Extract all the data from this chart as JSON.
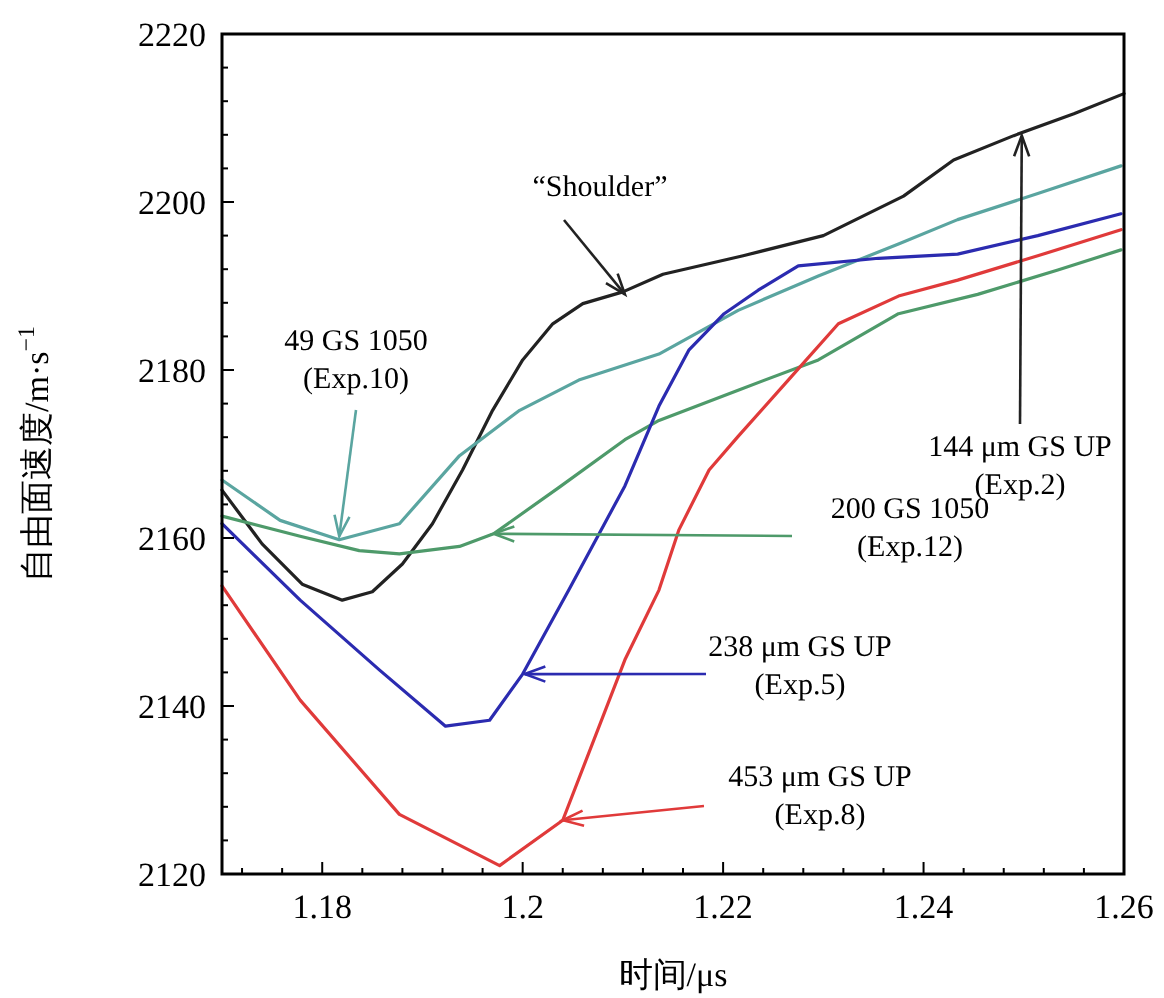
{
  "chart_data": {
    "type": "line",
    "xlabel": "时间/μs",
    "ylabel": "自由面速度/m·s$^{−1}$",
    "xlim": [
      1.17,
      1.26
    ],
    "ylim": [
      2120,
      2220
    ],
    "xticks": [
      {
        "value": 1.172,
        "label": null
      },
      {
        "value": 1.176,
        "label": null
      },
      1.18,
      {
        "value": 1.184,
        "label": null
      },
      {
        "value": 1.188,
        "label": null
      },
      {
        "value": 1.192,
        "label": null
      },
      {
        "value": 1.196,
        "label": null
      },
      1.2,
      {
        "value": 1.204,
        "label": null
      },
      {
        "value": 1.208,
        "label": null
      },
      {
        "value": 1.212,
        "label": null
      },
      {
        "value": 1.216,
        "label": null
      },
      1.22,
      {
        "value": 1.224,
        "label": null
      },
      {
        "value": 1.228,
        "label": null
      },
      {
        "value": 1.232,
        "label": null
      },
      {
        "value": 1.236,
        "label": null
      },
      1.24,
      {
        "value": 1.244,
        "label": null
      },
      {
        "value": 1.248,
        "label": null
      },
      {
        "value": 1.252,
        "label": null
      },
      {
        "value": 1.256,
        "label": null
      },
      1.26
    ],
    "yticks": [
      2120,
      {
        "value": 2124,
        "label": null
      },
      {
        "value": 2128,
        "label": null
      },
      {
        "value": 2132,
        "label": null
      },
      {
        "value": 2136,
        "label": null
      },
      2140,
      {
        "value": 2144,
        "label": null
      },
      {
        "value": 2148,
        "label": null
      },
      {
        "value": 2152,
        "label": null
      },
      {
        "value": 2156,
        "label": null
      },
      2160,
      {
        "value": 2164,
        "label": null
      },
      {
        "value": 2168,
        "label": null
      },
      {
        "value": 2172,
        "label": null
      },
      {
        "value": 2176,
        "label": null
      },
      2180,
      {
        "value": 2184,
        "label": null
      },
      {
        "value": 2188,
        "label": null
      },
      {
        "value": 2192,
        "label": null
      },
      {
        "value": 2196,
        "label": null
      },
      2200,
      {
        "value": 2204,
        "label": null
      },
      {
        "value": 2208,
        "label": null
      },
      {
        "value": 2212,
        "label": null
      },
      {
        "value": 2216,
        "label": null
      },
      2220
    ],
    "grid": false,
    "marker": "none",
    "line_style": "solid",
    "series": [
      {
        "color": "#222222",
        "x": [
          1.17,
          1.174,
          1.178,
          1.182,
          1.185,
          1.188,
          1.191,
          1.194,
          1.197,
          1.2,
          1.203,
          1.206,
          1.21,
          1.214,
          1.222,
          1.23,
          1.238,
          1.243,
          1.249,
          1.255,
          1.26
        ],
        "values": [
          2165.7,
          2159.3,
          2154.5,
          2152.6,
          2153.6,
          2156.9,
          2161.7,
          2168.1,
          2175.2,
          2181.2,
          2185.5,
          2187.9,
          2189.3,
          2191.4,
          2193.6,
          2196,
          2200.7,
          2205,
          2207.9,
          2210.5,
          2212.9
        ]
      },
      {
        "color": "#5aa5a0",
        "x": [
          1.17,
          1.1758,
          1.1817,
          1.1877,
          1.1937,
          1.1997,
          1.2056,
          1.2136,
          1.2215,
          1.2295,
          1.2375,
          1.2434,
          1.2514,
          1.2597
        ],
        "values": [
          2166.9,
          2162.1,
          2159.8,
          2161.7,
          2169.8,
          2175.2,
          2178.8,
          2181.9,
          2187.1,
          2191.2,
          2195,
          2197.9,
          2201,
          2204.3
        ]
      },
      {
        "color": "#4e9a6a",
        "x": [
          1.17,
          1.1778,
          1.1837,
          1.1877,
          1.1937,
          1.1971,
          1.2036,
          1.2102,
          1.2136,
          1.2215,
          1.2295,
          1.2375,
          1.2454,
          1.2534,
          1.2597
        ],
        "values": [
          2162.6,
          2160.2,
          2158.5,
          2158.1,
          2159.0,
          2160.5,
          2166,
          2171.7,
          2174,
          2177.6,
          2181.2,
          2186.7,
          2189,
          2191.9,
          2194.3
        ]
      },
      {
        "color": "#2b2bb0",
        "x": [
          1.17,
          1.1778,
          1.1857,
          1.1923,
          1.1967,
          1.2,
          1.2046,
          1.2102,
          1.2136,
          1.2166,
          1.2201,
          1.2235,
          1.2275,
          1.2355,
          1.2434,
          1.2514,
          1.2597
        ],
        "values": [
          2161.7,
          2152.6,
          2144.3,
          2137.6,
          2138.3,
          2143.8,
          2153.8,
          2166.2,
          2175.7,
          2182.4,
          2186.7,
          2189.5,
          2192.4,
          2193.3,
          2193.8,
          2196,
          2198.6
        ]
      },
      {
        "color": "#e03a3a",
        "x": [
          1.17,
          1.1778,
          1.1877,
          1.1977,
          1.204,
          1.2102,
          1.2136,
          1.2156,
          1.2186,
          1.2215,
          1.2265,
          1.2315,
          1.2375,
          1.2434,
          1.2514,
          1.2597
        ],
        "values": [
          2154.3,
          2140.7,
          2127.1,
          2121,
          2126.4,
          2145.5,
          2153.8,
          2161,
          2168.1,
          2172.1,
          2178.8,
          2185.5,
          2188.8,
          2190.7,
          2193.6,
          2196.7
        ]
      }
    ],
    "annotations": [
      {
        "text": "“Shoulder”",
        "x": 1.2102,
        "y": 2189
      },
      {
        "text": "49 GS 1050\n(Exp.10)",
        "x": 1.1817,
        "y": 2160.2
      },
      {
        "text": "144 μm GS UP\n(Exp.2)",
        "x": 1.2498,
        "y": 2207.9
      },
      {
        "text": "200 GS 1050\n(Exp.12)",
        "x": 1.1971,
        "y": 2160.5
      },
      {
        "text": "238 μm GS UP\n(Exp.5)",
        "x": 1.2002,
        "y": 2143.8
      },
      {
        "text": "453 μm GS UP\n(Exp.8)",
        "x": 1.204,
        "y": 2126.4
      }
    ]
  }
}
